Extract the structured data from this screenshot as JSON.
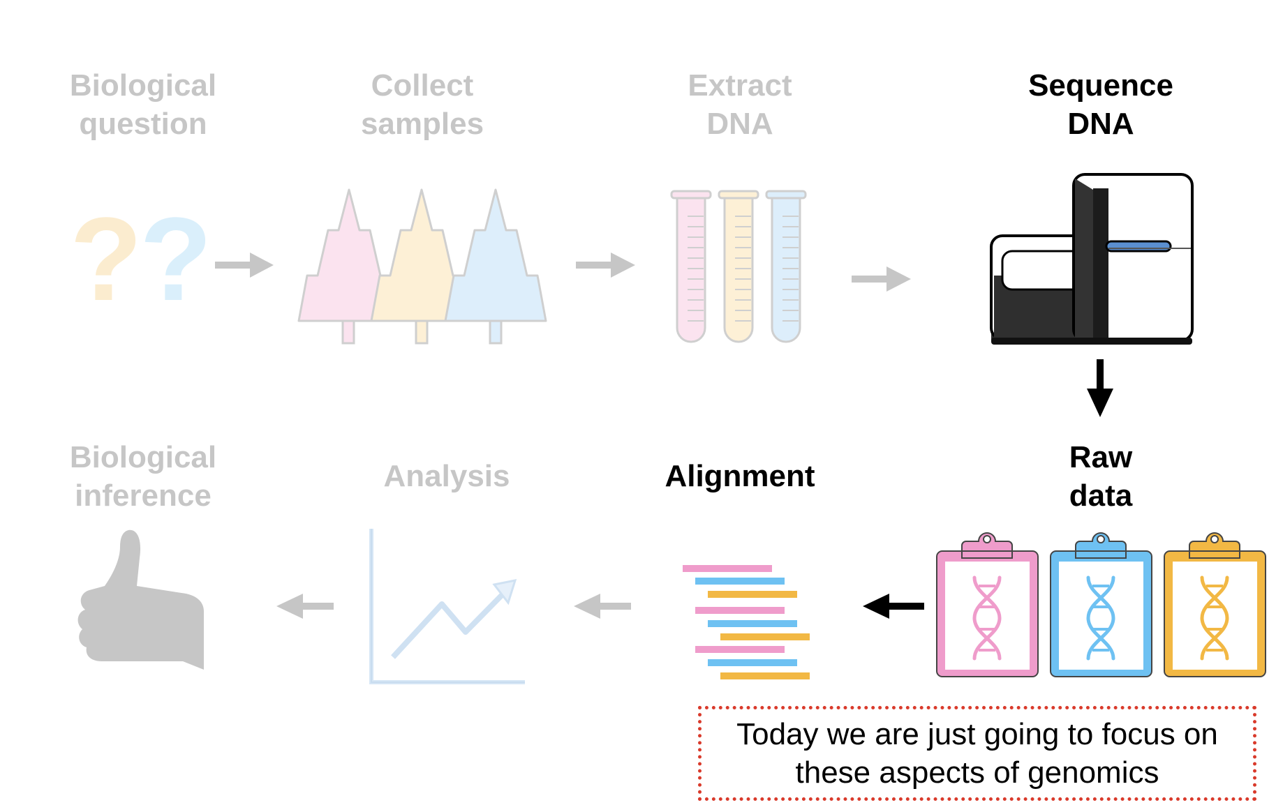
{
  "steps": {
    "question": {
      "line1": "Biological",
      "line2": "question"
    },
    "collect": {
      "line1": "Collect",
      "line2": "samples"
    },
    "extract": {
      "line1": "Extract",
      "line2": "DNA"
    },
    "sequence": {
      "line1": "Sequence",
      "line2": "DNA"
    },
    "rawdata": {
      "line1": "Raw",
      "line2": "data"
    },
    "alignment": {
      "line1": "Alignment"
    },
    "analysis": {
      "line1": "Analysis"
    },
    "inference": {
      "line1": "Biological",
      "line2": "inference"
    }
  },
  "question_marks": [
    "?",
    "?"
  ],
  "note": {
    "line1": "Today we are just going to focus on",
    "line2": "these aspects of genomics"
  },
  "colors": {
    "pink": "#ef9ccb",
    "blue": "#6ec1f2",
    "gold": "#f2b844",
    "faded_text": "#c6c6c6",
    "note_border": "#d93a2b"
  },
  "icons": [
    "question-mark-icon",
    "tree-icon",
    "test-tube-icon",
    "sequencer-icon",
    "clipboard-dna-icon",
    "alignment-reads-icon",
    "line-chart-icon",
    "thumbs-up-icon"
  ]
}
